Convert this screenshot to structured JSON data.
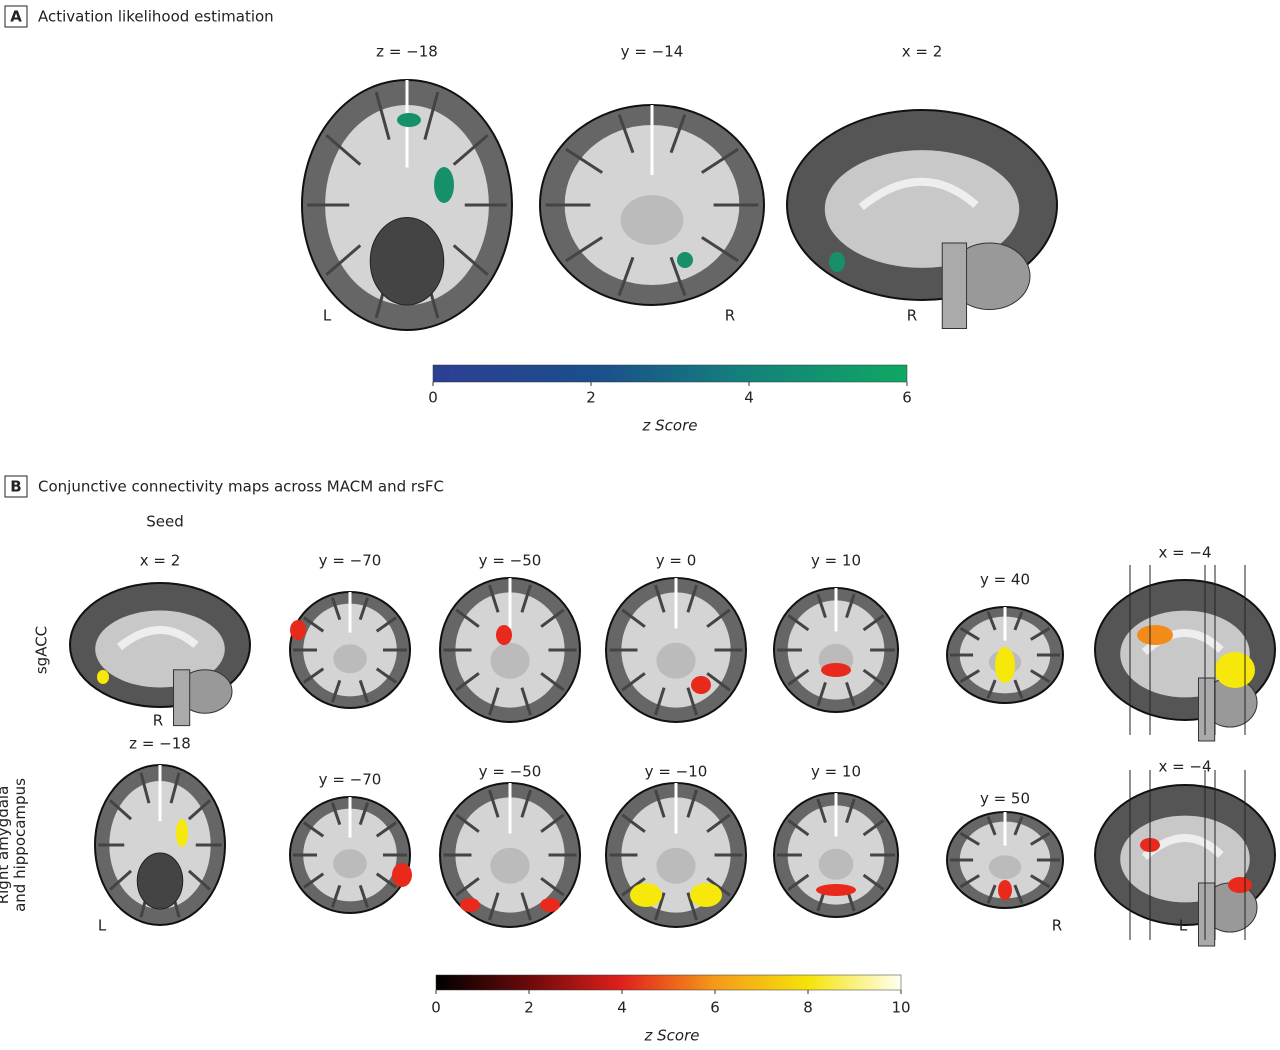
{
  "panel_a": {
    "letter": "A",
    "title": "Activation likelihood estimation",
    "slices": [
      {
        "label": "z = −18",
        "side": "L"
      },
      {
        "label": "y = −14",
        "side": "R"
      },
      {
        "label": "x = 2",
        "side": "R"
      }
    ],
    "colorbar": {
      "ticks": [
        0,
        2,
        4,
        6
      ],
      "label": "z Score"
    }
  },
  "panel_b": {
    "letter": "B",
    "title": "Conjunctive connectivity maps across MACM and rsFC",
    "seed_heading": "Seed",
    "rows": [
      {
        "name": "sgACC",
        "seed": "x = 2",
        "seed_side": "R",
        "slices": [
          "y = −70",
          "y = −50",
          "y = 0",
          "y = 10",
          "y = 40",
          "x = −4"
        ]
      },
      {
        "name": "Right amygdala and hippocampus",
        "seed": "z = −18",
        "seed_side": "L",
        "slices": [
          "y = −70",
          "y = −50",
          "y = −10",
          "y = 10",
          "y = 50",
          "x = −4"
        ],
        "sides": [
          "R",
          "L"
        ]
      }
    ],
    "colorbar": {
      "ticks": [
        0,
        2,
        4,
        6,
        8,
        10
      ],
      "label": "z Score"
    }
  }
}
